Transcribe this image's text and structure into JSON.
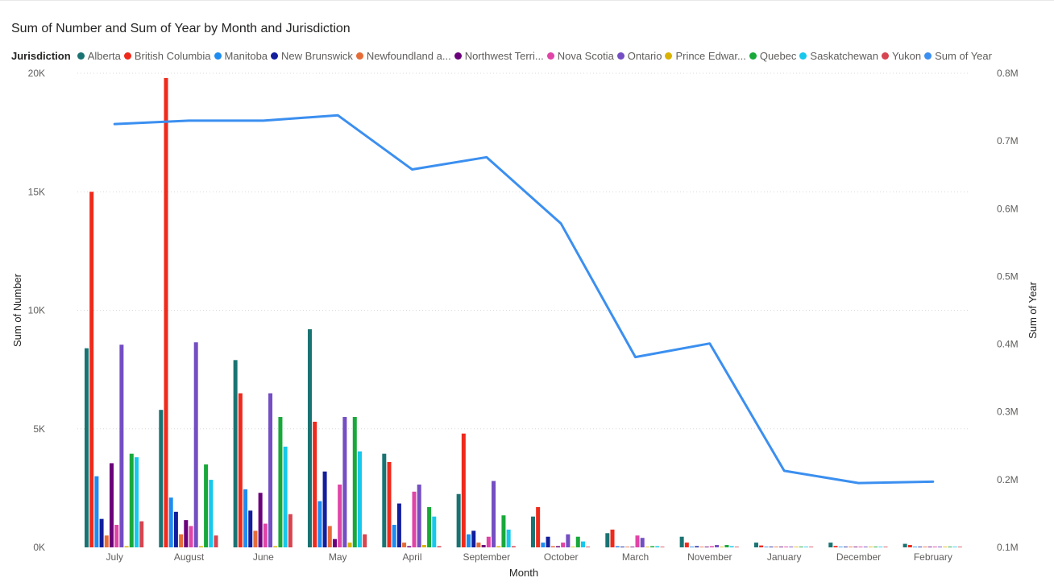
{
  "title": "Sum of Number and Sum of Year by Month and Jurisdiction",
  "legend_title": "Jurisdiction",
  "legend_items": [
    {
      "label": "Alberta",
      "color": "#1a7373"
    },
    {
      "label": "British Columbia",
      "color": "#ef2a1c"
    },
    {
      "label": "Manitoba",
      "color": "#1e8cf0"
    },
    {
      "label": "New Brunswick",
      "color": "#121e9c"
    },
    {
      "label": "Newfoundland a...",
      "color": "#e66c37"
    },
    {
      "label": "Northwest Terri...",
      "color": "#6b007b"
    },
    {
      "label": "Nova Scotia",
      "color": "#e044a7"
    },
    {
      "label": "Ontario",
      "color": "#744ec2"
    },
    {
      "label": "Prince Edwar...",
      "color": "#d9b300"
    },
    {
      "label": "Quebec",
      "color": "#19a83a"
    },
    {
      "label": "Saskatchewan",
      "color": "#16c8eb"
    },
    {
      "label": "Yukon",
      "color": "#d64550"
    },
    {
      "label": "Sum of Year",
      "color": "#3b8ff0"
    }
  ],
  "chart_data": {
    "type": "bar",
    "title": "Sum of Number and Sum of Year by Month and Jurisdiction",
    "xlabel": "Month",
    "ylabel": "Sum of Number",
    "y2label": "Sum of Year",
    "ylim": [
      0,
      20000
    ],
    "y2lim": [
      100000,
      800000
    ],
    "yticks": [
      {
        "value": 0,
        "label": "0K"
      },
      {
        "value": 5000,
        "label": "5K"
      },
      {
        "value": 10000,
        "label": "10K"
      },
      {
        "value": 15000,
        "label": "15K"
      },
      {
        "value": 20000,
        "label": "20K"
      }
    ],
    "y2ticks": [
      {
        "value": 100000,
        "label": "0.1M"
      },
      {
        "value": 200000,
        "label": "0.2M"
      },
      {
        "value": 300000,
        "label": "0.3M"
      },
      {
        "value": 400000,
        "label": "0.4M"
      },
      {
        "value": 500000,
        "label": "0.5M"
      },
      {
        "value": 600000,
        "label": "0.6M"
      },
      {
        "value": 700000,
        "label": "0.7M"
      },
      {
        "value": 800000,
        "label": "0.8M"
      }
    ],
    "grid": true,
    "legend_position": "top-left",
    "categories": [
      "July",
      "August",
      "June",
      "May",
      "April",
      "September",
      "October",
      "March",
      "November",
      "January",
      "December",
      "February"
    ],
    "series": [
      {
        "name": "Alberta",
        "color": "#1a7373",
        "values": [
          8400,
          5800,
          7900,
          9200,
          3950,
          2250,
          1300,
          600,
          450,
          200,
          200,
          150
        ]
      },
      {
        "name": "British Columbia",
        "color": "#ef2a1c",
        "values": [
          15000,
          19800,
          6500,
          5300,
          3600,
          4800,
          1700,
          750,
          200,
          80,
          60,
          100
        ]
      },
      {
        "name": "Manitoba",
        "color": "#1e8cf0",
        "values": [
          3000,
          2100,
          2450,
          1950,
          950,
          550,
          200,
          50,
          30,
          20,
          20,
          20
        ]
      },
      {
        "name": "New Brunswick",
        "color": "#121e9c",
        "values": [
          1200,
          1500,
          1550,
          3200,
          1850,
          700,
          450,
          30,
          50,
          20,
          20,
          20
        ]
      },
      {
        "name": "Newfoundland a...",
        "color": "#e66c37",
        "values": [
          500,
          550,
          700,
          900,
          200,
          200,
          50,
          20,
          20,
          10,
          10,
          10
        ]
      },
      {
        "name": "Northwest Terri...",
        "color": "#6b007b",
        "values": [
          3550,
          1150,
          2300,
          350,
          50,
          100,
          50,
          20,
          30,
          10,
          10,
          20
        ]
      },
      {
        "name": "Nova Scotia",
        "color": "#e044a7",
        "values": [
          950,
          900,
          1000,
          2650,
          2350,
          450,
          200,
          500,
          50,
          30,
          30,
          30
        ]
      },
      {
        "name": "Ontario",
        "color": "#744ec2",
        "values": [
          8550,
          8650,
          6500,
          5500,
          2650,
          2800,
          550,
          400,
          100,
          30,
          30,
          30
        ]
      },
      {
        "name": "Prince Edwar...",
        "color": "#d9b300",
        "values": [
          50,
          50,
          50,
          200,
          100,
          50,
          20,
          10,
          10,
          10,
          10,
          10
        ]
      },
      {
        "name": "Quebec",
        "color": "#19a83a",
        "values": [
          3950,
          3500,
          5500,
          5500,
          1700,
          1350,
          450,
          50,
          100,
          30,
          30,
          30
        ]
      },
      {
        "name": "Saskatchewan",
        "color": "#16c8eb",
        "values": [
          3800,
          2850,
          4250,
          4050,
          1300,
          750,
          250,
          50,
          50,
          20,
          20,
          20
        ]
      },
      {
        "name": "Yukon",
        "color": "#d64550",
        "values": [
          1100,
          500,
          1400,
          550,
          50,
          50,
          30,
          10,
          20,
          10,
          10,
          10
        ]
      }
    ],
    "line_series": {
      "name": "Sum of Year",
      "color": "#3b8ff0",
      "axis": "secondary",
      "values": [
        725000,
        730000,
        730000,
        738000,
        658000,
        676000,
        578000,
        381000,
        401000,
        213000,
        195000,
        197000
      ]
    }
  }
}
